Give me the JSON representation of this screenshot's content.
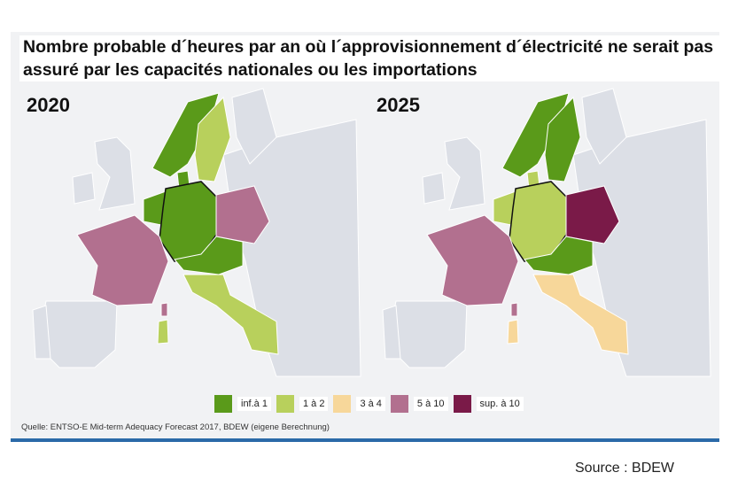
{
  "title": "Nombre probable d´heures par an où l´approvisionnement d´électricité ne serait pas assuré par les capacités nationales ou les importations",
  "maps": [
    {
      "year": "2020",
      "fills": {
        "norway": 0,
        "sweden": 1,
        "denmark": 0,
        "benelux": 0,
        "germany": 0,
        "poland": 3,
        "alpine": 0,
        "france": 3,
        "italy": 1,
        "sardinia": 1,
        "corsica": 3
      }
    },
    {
      "year": "2025",
      "fills": {
        "norway": 0,
        "sweden": 0,
        "denmark": 1,
        "benelux": 1,
        "germany": 1,
        "poland": 4,
        "alpine": 0,
        "france": 3,
        "italy": 2,
        "sardinia": 2,
        "corsica": 3
      }
    }
  ],
  "legend": [
    {
      "label": "inf.à 1",
      "color": "#5a9a1a"
    },
    {
      "label": "1 à 2",
      "color": "#b8d05c"
    },
    {
      "label": "3 à 4",
      "color": "#f7d79a"
    },
    {
      "label": "5 à 10",
      "color": "#b2708f"
    },
    {
      "label": "sup. à 10",
      "color": "#7a1a48"
    }
  ],
  "colors": {
    "other": "#dcdfe6",
    "sea": "#f1f2f4"
  },
  "quelle": "Quelle: ENTSO-E Mid-term Adequacy Forecast 2017, BDEW (eigene Berechnung)",
  "source": "Source : BDEW"
}
